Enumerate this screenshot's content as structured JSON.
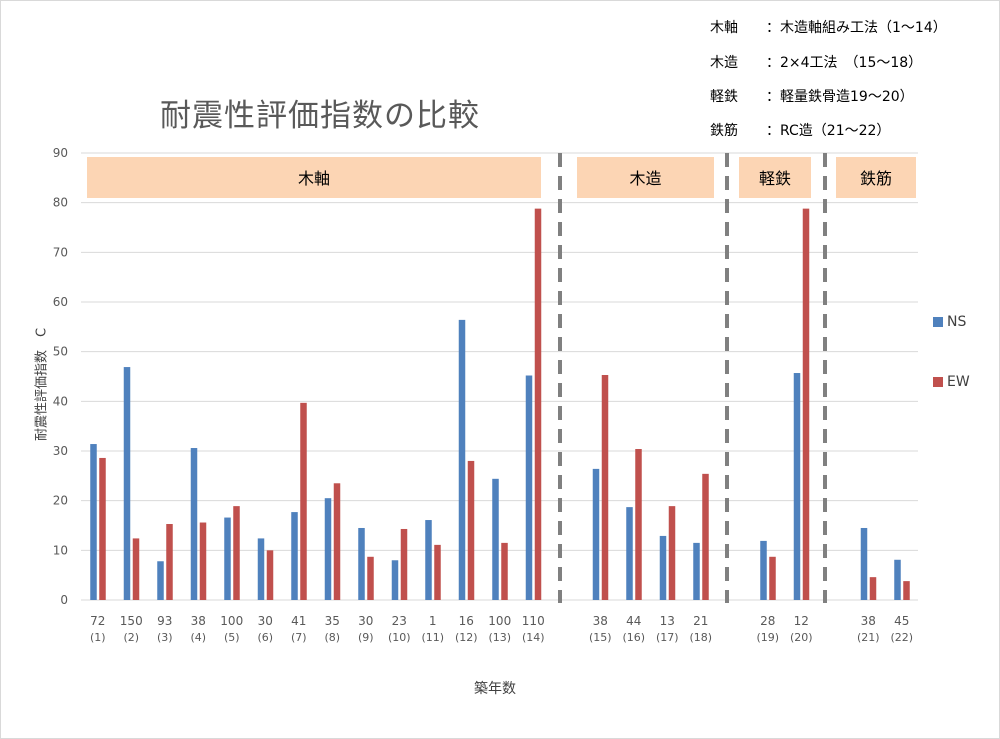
{
  "chart_data": {
    "type": "bar",
    "title": "耐震性評価指数の比較",
    "xlabel": "築年数",
    "ylabel": "耐震性評価指数　C",
    "ylim": [
      0,
      90
    ],
    "yticks": [
      0,
      10,
      20,
      30,
      40,
      50,
      60,
      70,
      80,
      90
    ],
    "grid": true,
    "legend_position": "right",
    "categories": [
      {
        "age": "72",
        "id": "(1)"
      },
      {
        "age": "150",
        "id": "(2)"
      },
      {
        "age": "93",
        "id": "(3)"
      },
      {
        "age": "38",
        "id": "(4)"
      },
      {
        "age": "100",
        "id": "(5)"
      },
      {
        "age": "30",
        "id": "(6)"
      },
      {
        "age": "41",
        "id": "(7)"
      },
      {
        "age": "35",
        "id": "(8)"
      },
      {
        "age": "30",
        "id": "(9)"
      },
      {
        "age": "23",
        "id": "(10)"
      },
      {
        "age": "1",
        "id": "(11)"
      },
      {
        "age": "16",
        "id": "(12)"
      },
      {
        "age": "100",
        "id": "(13)"
      },
      {
        "age": "110",
        "id": "(14)"
      },
      {
        "age": "38",
        "id": "(15)"
      },
      {
        "age": "44",
        "id": "(16)"
      },
      {
        "age": "13",
        "id": "(17)"
      },
      {
        "age": "21",
        "id": "(18)"
      },
      {
        "age": "28",
        "id": "(19)"
      },
      {
        "age": "12",
        "id": "(20)"
      },
      {
        "age": "38",
        "id": "(21)"
      },
      {
        "age": "45",
        "id": "(22)"
      }
    ],
    "series": [
      {
        "name": "NS",
        "color": "#4f81bd",
        "values": [
          31.4,
          46.9,
          7.8,
          30.6,
          16.6,
          12.4,
          17.7,
          20.5,
          14.5,
          8.0,
          16.1,
          56.4,
          24.4,
          45.2,
          26.4,
          18.7,
          12.9,
          11.5,
          11.9,
          45.7,
          14.5,
          8.1
        ]
      },
      {
        "name": "EW",
        "color": "#c0504d",
        "values": [
          28.6,
          12.4,
          15.3,
          15.6,
          18.9,
          10.0,
          39.7,
          23.5,
          8.7,
          14.3,
          11.1,
          28.0,
          11.5,
          78.8,
          45.3,
          30.4,
          18.9,
          25.4,
          8.7,
          78.8,
          4.6,
          3.8
        ]
      }
    ],
    "groups": [
      {
        "label": "木軸",
        "start": 1,
        "end": 14
      },
      {
        "label": "木造",
        "start": 15,
        "end": 18
      },
      {
        "label": "軽鉄",
        "start": 19,
        "end": 20
      },
      {
        "label": "鉄筋",
        "start": 21,
        "end": 22
      }
    ],
    "group_band_color": "#fcd5b4"
  },
  "notes": [
    {
      "key": "木軸",
      "desc": "：木造軸組み工法（1～14）"
    },
    {
      "key": "木造",
      "desc": "：2×4工法　（15～18）"
    },
    {
      "key": "軽鉄",
      "desc": "：軽量鉄骨造19～20）"
    },
    {
      "key": "鉄筋",
      "desc": "：RC造（21～22）"
    }
  ]
}
